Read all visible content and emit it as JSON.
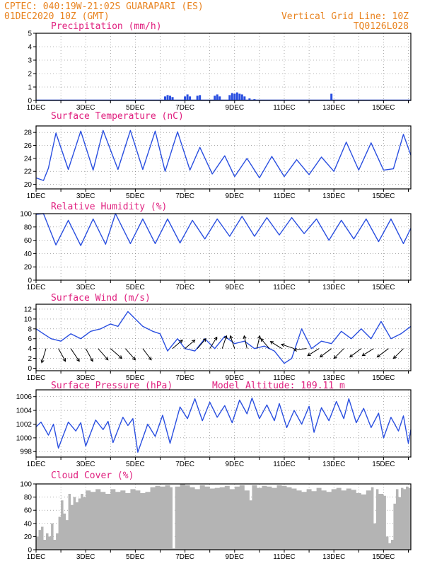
{
  "header": {
    "line1": "CPTEC:   040:19W-21:02S  GUARAPARI (ES)",
    "line2": "01DEC2020 10Z (GMT)",
    "right1": "Vertical Grid Line: 10Z",
    "right2": "TQ0126L028"
  },
  "colors": {
    "header": "#e8821e",
    "title": "#e0207f",
    "series": "#2a4fe0",
    "cloud": "#b4b4b4",
    "arrow": "#000000"
  },
  "chart_data": [
    {
      "id": "precip",
      "type": "bar",
      "title": "Precipitation (mm/h)",
      "ylim": [
        0,
        5
      ],
      "yticks": [
        0,
        1,
        2,
        3,
        4,
        5
      ],
      "xlim": [
        1,
        16.1
      ],
      "xticks": [
        "1DEC",
        "3DEC",
        "5DEC",
        "7DEC",
        "9DEC",
        "11DEC",
        "13DEC",
        "15DEC"
      ],
      "grid": true,
      "points": [
        [
          6.2,
          0.3
        ],
        [
          6.3,
          0.4
        ],
        [
          6.4,
          0.35
        ],
        [
          6.5,
          0.25
        ],
        [
          7.0,
          0.3
        ],
        [
          7.1,
          0.45
        ],
        [
          7.2,
          0.3
        ],
        [
          7.5,
          0.35
        ],
        [
          7.6,
          0.4
        ],
        [
          8.2,
          0.35
        ],
        [
          8.3,
          0.45
        ],
        [
          8.4,
          0.3
        ],
        [
          8.8,
          0.4
        ],
        [
          8.9,
          0.55
        ],
        [
          9.0,
          0.5
        ],
        [
          9.1,
          0.6
        ],
        [
          9.2,
          0.5
        ],
        [
          9.3,
          0.45
        ],
        [
          9.4,
          0.3
        ],
        [
          9.6,
          0.15
        ],
        [
          9.8,
          0.1
        ],
        [
          12.9,
          0.5
        ]
      ]
    },
    {
      "id": "temp",
      "type": "line",
      "title": "Surface Temperature (nC)",
      "ylim": [
        19.3,
        29
      ],
      "yticks": [
        20,
        22,
        24,
        26,
        28
      ],
      "xlim": [
        1,
        16.1
      ],
      "xticks": [
        "1DEC",
        "3DEC",
        "5DEC",
        "7DEC",
        "9DEC",
        "11DEC",
        "13DEC",
        "15DEC"
      ],
      "grid": true,
      "points": [
        [
          1.0,
          21.0
        ],
        [
          1.3,
          20.6
        ],
        [
          1.5,
          22.5
        ],
        [
          1.8,
          27.9
        ],
        [
          2.3,
          22.3
        ],
        [
          2.8,
          28.2
        ],
        [
          3.3,
          22.2
        ],
        [
          3.7,
          28.3
        ],
        [
          4.3,
          22.3
        ],
        [
          4.8,
          28.3
        ],
        [
          5.3,
          22.3
        ],
        [
          5.8,
          28.2
        ],
        [
          6.2,
          22.0
        ],
        [
          6.7,
          28.1
        ],
        [
          7.2,
          22.2
        ],
        [
          7.6,
          25.7
        ],
        [
          8.1,
          21.6
        ],
        [
          8.6,
          24.4
        ],
        [
          9.0,
          21.2
        ],
        [
          9.5,
          24.0
        ],
        [
          10.0,
          21.0
        ],
        [
          10.5,
          24.3
        ],
        [
          11.0,
          21.2
        ],
        [
          11.5,
          23.8
        ],
        [
          12.0,
          21.5
        ],
        [
          12.5,
          24.2
        ],
        [
          13.0,
          22.0
        ],
        [
          13.5,
          26.5
        ],
        [
          14.0,
          22.2
        ],
        [
          14.5,
          26.4
        ],
        [
          15.0,
          22.2
        ],
        [
          15.4,
          22.4
        ],
        [
          15.8,
          27.7
        ],
        [
          16.1,
          24.5
        ]
      ]
    },
    {
      "id": "rh",
      "type": "line",
      "title": "Relative Humidity (%)",
      "ylim": [
        0,
        100
      ],
      "yticks": [
        0,
        20,
        40,
        60,
        80,
        100
      ],
      "xlim": [
        1,
        16.1
      ],
      "xticks": [
        "1DEC",
        "3DEC",
        "5DEC",
        "7DEC",
        "9DEC",
        "11DEC",
        "13DEC",
        "15DEC"
      ],
      "grid": true,
      "points": [
        [
          1.0,
          99
        ],
        [
          1.3,
          100
        ],
        [
          1.8,
          53
        ],
        [
          2.3,
          90
        ],
        [
          2.8,
          52
        ],
        [
          3.3,
          92
        ],
        [
          3.8,
          54
        ],
        [
          4.2,
          100
        ],
        [
          4.8,
          55
        ],
        [
          5.3,
          92
        ],
        [
          5.8,
          55
        ],
        [
          6.3,
          92
        ],
        [
          6.8,
          56
        ],
        [
          7.3,
          90
        ],
        [
          7.8,
          62
        ],
        [
          8.3,
          92
        ],
        [
          8.8,
          66
        ],
        [
          9.3,
          96
        ],
        [
          9.8,
          66
        ],
        [
          10.3,
          94
        ],
        [
          10.8,
          68
        ],
        [
          11.3,
          94
        ],
        [
          11.8,
          70
        ],
        [
          12.3,
          92
        ],
        [
          12.8,
          60
        ],
        [
          13.3,
          90
        ],
        [
          13.8,
          62
        ],
        [
          14.3,
          92
        ],
        [
          14.8,
          58
        ],
        [
          15.3,
          92
        ],
        [
          15.8,
          55
        ],
        [
          16.1,
          78
        ]
      ]
    },
    {
      "id": "wind",
      "type": "line",
      "title": "Surface Wind (m/s)",
      "ylim": [
        -0.5,
        13
      ],
      "yticks": [
        0,
        2,
        4,
        6,
        8,
        10,
        12
      ],
      "xlim": [
        1,
        16.1
      ],
      "xticks": [
        "1DEC",
        "3DEC",
        "5DEC",
        "7DEC",
        "9DEC",
        "11DEC",
        "13DEC",
        "15DEC"
      ],
      "grid": true,
      "points": [
        [
          1.0,
          8.0
        ],
        [
          1.3,
          7.0
        ],
        [
          1.6,
          6.0
        ],
        [
          2.0,
          5.5
        ],
        [
          2.4,
          7.0
        ],
        [
          2.8,
          6.0
        ],
        [
          3.2,
          7.5
        ],
        [
          3.6,
          8.0
        ],
        [
          4.0,
          9.0
        ],
        [
          4.3,
          8.5
        ],
        [
          4.7,
          11.5
        ],
        [
          5.0,
          10.0
        ],
        [
          5.3,
          8.5
        ],
        [
          5.7,
          7.5
        ],
        [
          6.0,
          7.0
        ],
        [
          6.3,
          3.5
        ],
        [
          6.7,
          6.0
        ],
        [
          7.0,
          4.0
        ],
        [
          7.4,
          3.5
        ],
        [
          7.8,
          6.0
        ],
        [
          8.2,
          4.0
        ],
        [
          8.6,
          6.5
        ],
        [
          9.0,
          5.0
        ],
        [
          9.4,
          5.5
        ],
        [
          9.8,
          4.0
        ],
        [
          10.2,
          4.5
        ],
        [
          10.6,
          3.5
        ],
        [
          11.0,
          1.0
        ],
        [
          11.3,
          2.0
        ],
        [
          11.7,
          8.0
        ],
        [
          12.1,
          4.0
        ],
        [
          12.5,
          5.5
        ],
        [
          12.9,
          5.0
        ],
        [
          13.3,
          7.5
        ],
        [
          13.7,
          6.0
        ],
        [
          14.1,
          8.0
        ],
        [
          14.5,
          6.0
        ],
        [
          14.9,
          9.5
        ],
        [
          15.3,
          6.0
        ],
        [
          15.7,
          7.0
        ],
        [
          16.1,
          8.5
        ]
      ],
      "vectors": [
        [
          1.4,
          -0.3,
          -1.0
        ],
        [
          1.9,
          0.5,
          -0.9
        ],
        [
          2.4,
          0.6,
          -0.9
        ],
        [
          3.0,
          0.5,
          -0.9
        ],
        [
          3.5,
          0.7,
          -0.8
        ],
        [
          4.0,
          0.8,
          -0.7
        ],
        [
          4.6,
          0.7,
          -0.8
        ],
        [
          5.3,
          0.6,
          -0.8
        ],
        [
          6.5,
          0.7,
          0.6
        ],
        [
          7.0,
          0.7,
          0.6
        ],
        [
          7.5,
          0.6,
          0.7
        ],
        [
          8.0,
          0.5,
          0.8
        ],
        [
          8.5,
          0.3,
          0.9
        ],
        [
          9.0,
          -0.3,
          0.9
        ],
        [
          9.5,
          -0.2,
          0.9
        ],
        [
          9.9,
          0.2,
          0.9
        ],
        [
          10.4,
          -0.6,
          0.7
        ],
        [
          10.9,
          -0.8,
          0.5
        ],
        [
          11.4,
          -0.9,
          0.3
        ],
        [
          11.9,
          -0.9,
          -0.1
        ],
        [
          12.4,
          -0.8,
          -0.5
        ],
        [
          12.9,
          -0.8,
          -0.6
        ],
        [
          13.4,
          -0.7,
          -0.7
        ],
        [
          14.1,
          -0.8,
          -0.6
        ],
        [
          14.6,
          -0.8,
          -0.5
        ],
        [
          15.2,
          -0.8,
          -0.6
        ],
        [
          15.8,
          -0.7,
          -0.7
        ]
      ]
    },
    {
      "id": "press",
      "type": "line",
      "title": "Surface Pressure (hPa)",
      "subtitle": "Model Altitude: 109.11  m",
      "ylim": [
        997.2,
        1007
      ],
      "yticks": [
        998,
        1000,
        1002,
        1004,
        1006
      ],
      "xlim": [
        1,
        16.1
      ],
      "xticks": [
        "1DEC",
        "3DEC",
        "5DEC",
        "7DEC",
        "9DEC",
        "11DEC",
        "13DEC",
        "15DEC"
      ],
      "grid": true,
      "points": [
        [
          1.0,
          1001.6
        ],
        [
          1.2,
          1002.3
        ],
        [
          1.5,
          1000.4
        ],
        [
          1.7,
          1002.0
        ],
        [
          1.9,
          998.5
        ],
        [
          2.3,
          1002.3
        ],
        [
          2.6,
          1001.0
        ],
        [
          2.8,
          1002.2
        ],
        [
          3.0,
          998.8
        ],
        [
          3.4,
          1002.6
        ],
        [
          3.7,
          1001.2
        ],
        [
          3.9,
          1002.4
        ],
        [
          4.1,
          999.3
        ],
        [
          4.5,
          1003.0
        ],
        [
          4.7,
          1001.8
        ],
        [
          4.9,
          1002.8
        ],
        [
          5.1,
          997.9
        ],
        [
          5.5,
          1002.0
        ],
        [
          5.8,
          1000.2
        ],
        [
          6.1,
          1003.3
        ],
        [
          6.4,
          999.2
        ],
        [
          6.8,
          1004.5
        ],
        [
          7.1,
          1002.8
        ],
        [
          7.4,
          1005.7
        ],
        [
          7.7,
          1002.5
        ],
        [
          8.0,
          1005.2
        ],
        [
          8.3,
          1003.0
        ],
        [
          8.6,
          1004.7
        ],
        [
          8.9,
          1002.2
        ],
        [
          9.2,
          1005.5
        ],
        [
          9.5,
          1003.5
        ],
        [
          9.7,
          1005.8
        ],
        [
          10.0,
          1002.8
        ],
        [
          10.3,
          1004.8
        ],
        [
          10.6,
          1002.5
        ],
        [
          10.8,
          1005.0
        ],
        [
          11.1,
          1001.5
        ],
        [
          11.4,
          1004.0
        ],
        [
          11.7,
          1002.0
        ],
        [
          12.0,
          1004.6
        ],
        [
          12.2,
          1000.8
        ],
        [
          12.5,
          1004.4
        ],
        [
          12.8,
          1002.5
        ],
        [
          13.1,
          1005.3
        ],
        [
          13.4,
          1002.8
        ],
        [
          13.6,
          1005.7
        ],
        [
          13.9,
          1002.2
        ],
        [
          14.2,
          1004.3
        ],
        [
          14.5,
          1001.5
        ],
        [
          14.8,
          1003.6
        ],
        [
          15.0,
          1000.0
        ],
        [
          15.3,
          1003.0
        ],
        [
          15.6,
          1001.0
        ],
        [
          15.8,
          1003.2
        ],
        [
          16.0,
          999.2
        ],
        [
          16.1,
          1001.2
        ]
      ]
    },
    {
      "id": "cloud",
      "type": "bar",
      "title": "Cloud Cover (%)",
      "ylim": [
        0,
        100
      ],
      "yticks": [
        0,
        20,
        40,
        60,
        80,
        100
      ],
      "xlim": [
        1,
        16.1
      ],
      "xticks": [
        "1DEC",
        "3DEC",
        "5DEC",
        "7DEC",
        "9DEC",
        "11DEC",
        "13DEC",
        "15DEC"
      ],
      "grid": true,
      "points": [
        [
          1.0,
          20
        ],
        [
          1.1,
          30
        ],
        [
          1.2,
          35
        ],
        [
          1.3,
          15
        ],
        [
          1.4,
          25
        ],
        [
          1.5,
          20
        ],
        [
          1.6,
          40
        ],
        [
          1.7,
          15
        ],
        [
          1.8,
          25
        ],
        [
          1.9,
          50
        ],
        [
          2.0,
          75
        ],
        [
          2.1,
          55
        ],
        [
          2.2,
          45
        ],
        [
          2.3,
          85
        ],
        [
          2.4,
          68
        ],
        [
          2.5,
          80
        ],
        [
          2.6,
          72
        ],
        [
          2.7,
          78
        ],
        [
          2.8,
          85
        ],
        [
          2.9,
          80
        ],
        [
          3.0,
          90
        ],
        [
          3.2,
          88
        ],
        [
          3.4,
          92
        ],
        [
          3.6,
          88
        ],
        [
          3.8,
          85
        ],
        [
          4.0,
          92
        ],
        [
          4.2,
          88
        ],
        [
          4.4,
          90
        ],
        [
          4.6,
          86
        ],
        [
          4.8,
          92
        ],
        [
          5.0,
          90
        ],
        [
          5.2,
          86
        ],
        [
          5.4,
          88
        ],
        [
          5.6,
          95
        ],
        [
          5.8,
          97
        ],
        [
          6.0,
          96
        ],
        [
          6.2,
          98
        ],
        [
          6.4,
          95
        ],
        [
          6.5,
          2
        ],
        [
          6.6,
          96
        ],
        [
          6.8,
          100
        ],
        [
          7.0,
          98
        ],
        [
          7.2,
          95
        ],
        [
          7.4,
          92
        ],
        [
          7.6,
          98
        ],
        [
          7.8,
          96
        ],
        [
          8.0,
          93
        ],
        [
          8.2,
          94
        ],
        [
          8.4,
          95
        ],
        [
          8.6,
          97
        ],
        [
          8.8,
          92
        ],
        [
          9.0,
          96
        ],
        [
          9.2,
          98
        ],
        [
          9.4,
          90
        ],
        [
          9.6,
          75
        ],
        [
          9.7,
          98
        ],
        [
          9.9,
          94
        ],
        [
          10.1,
          97
        ],
        [
          10.3,
          96
        ],
        [
          10.5,
          94
        ],
        [
          10.7,
          98
        ],
        [
          10.9,
          97
        ],
        [
          11.1,
          95
        ],
        [
          11.3,
          93
        ],
        [
          11.5,
          90
        ],
        [
          11.7,
          88
        ],
        [
          11.9,
          92
        ],
        [
          12.1,
          89
        ],
        [
          12.3,
          94
        ],
        [
          12.5,
          90
        ],
        [
          12.7,
          88
        ],
        [
          12.9,
          92
        ],
        [
          13.1,
          94
        ],
        [
          13.3,
          90
        ],
        [
          13.5,
          93
        ],
        [
          13.7,
          91
        ],
        [
          13.9,
          86
        ],
        [
          14.1,
          84
        ],
        [
          14.3,
          90
        ],
        [
          14.5,
          95
        ],
        [
          14.6,
          40
        ],
        [
          14.7,
          92
        ],
        [
          14.8,
          85
        ],
        [
          15.0,
          82
        ],
        [
          15.1,
          20
        ],
        [
          15.2,
          10
        ],
        [
          15.3,
          15
        ],
        [
          15.4,
          70
        ],
        [
          15.5,
          92
        ],
        [
          15.6,
          80
        ],
        [
          15.7,
          94
        ],
        [
          15.8,
          92
        ],
        [
          15.9,
          96
        ],
        [
          16.0,
          94
        ],
        [
          16.1,
          97
        ]
      ]
    }
  ]
}
